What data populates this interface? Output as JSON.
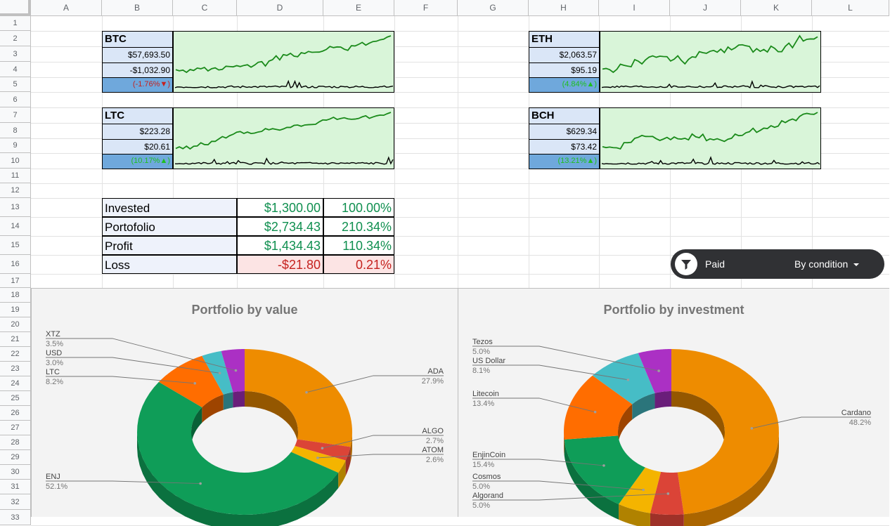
{
  "columns": [
    "A",
    "B",
    "C",
    "D",
    "E",
    "F",
    "G",
    "H",
    "I",
    "J",
    "K",
    "L"
  ],
  "rows": [
    "1",
    "2",
    "3",
    "4",
    "5",
    "6",
    "7",
    "8",
    "9",
    "10",
    "11",
    "12",
    "13",
    "14",
    "15",
    "16",
    "17",
    "18",
    "19",
    "20",
    "21",
    "22",
    "23",
    "24",
    "25",
    "26",
    "27",
    "28",
    "29",
    "30",
    "31",
    "32",
    "33"
  ],
  "tickers": [
    {
      "name": "BTC",
      "price": "$57,693.50",
      "change": "-$1,032.90",
      "pct": "(-1.76%▼)",
      "pct_color": "#c5221f"
    },
    {
      "name": "ETH",
      "price": "$2,063.57",
      "change": "$95.19",
      "pct": "(4.84%▲)",
      "pct_color": "#1fbf1f"
    },
    {
      "name": "LTC",
      "price": "$223.28",
      "change": "$20.61",
      "pct": "(10.17%▲)",
      "pct_color": "#1fbf1f"
    },
    {
      "name": "BCH",
      "price": "$629.34",
      "change": "$73.42",
      "pct": "(13.21%▲)",
      "pct_color": "#1fbf1f"
    }
  ],
  "summary": [
    {
      "label": "Invested",
      "amount": "$1,300.00",
      "percent": "100.00%",
      "color": "#0f8f4f",
      "bg": "#ffffff"
    },
    {
      "label": "Portofolio",
      "amount": "$2,734.43",
      "percent": "210.34%",
      "color": "#0f8f4f",
      "bg": "#ffffff"
    },
    {
      "label": "Profit",
      "amount": "$1,434.43",
      "percent": "110.34%",
      "color": "#0f8f4f",
      "bg": "#ffffff"
    },
    {
      "label": "Loss",
      "amount": "-$21.80",
      "percent": "0.21%",
      "color": "#c5221f",
      "bg": "#fce4e4"
    }
  ],
  "filter": {
    "label": "Paid",
    "mode": "By condition",
    "icon": "filter-icon",
    "dropdown_icon": "caret-down-icon"
  },
  "chart_data": [
    {
      "type": "pie",
      "title": "Portfolio by value",
      "categories": [
        "ADA",
        "ALGO",
        "ATOM",
        "ENJ",
        "LTC",
        "USD",
        "XTZ"
      ],
      "values": [
        27.9,
        2.7,
        2.6,
        52.1,
        8.2,
        3.0,
        3.5
      ],
      "labels": [
        "27.9%",
        "2.7%",
        "2.6%",
        "52.1%",
        "8.2%",
        "3.0%",
        "3.5%"
      ],
      "colors": [
        "#ee8c00",
        "#db4437",
        "#f4b400",
        "#0f9d58",
        "#ff6d00",
        "#46bdc6",
        "#ab30c4"
      ]
    },
    {
      "type": "pie",
      "title": "Portfolio by investment",
      "categories": [
        "Cardano",
        "Algorand",
        "Cosmos",
        "EnjinCoin",
        "Litecoin",
        "US Dollar",
        "Tezos"
      ],
      "values": [
        48.2,
        5.0,
        5.0,
        15.4,
        13.4,
        8.1,
        5.0
      ],
      "labels": [
        "48.2%",
        "5.0%",
        "5.0%",
        "15.4%",
        "13.4%",
        "8.1%",
        "5.0%"
      ],
      "colors": [
        "#ee8c00",
        "#db4437",
        "#f4b400",
        "#0f9d58",
        "#ff6d00",
        "#46bdc6",
        "#ab30c4"
      ]
    }
  ]
}
